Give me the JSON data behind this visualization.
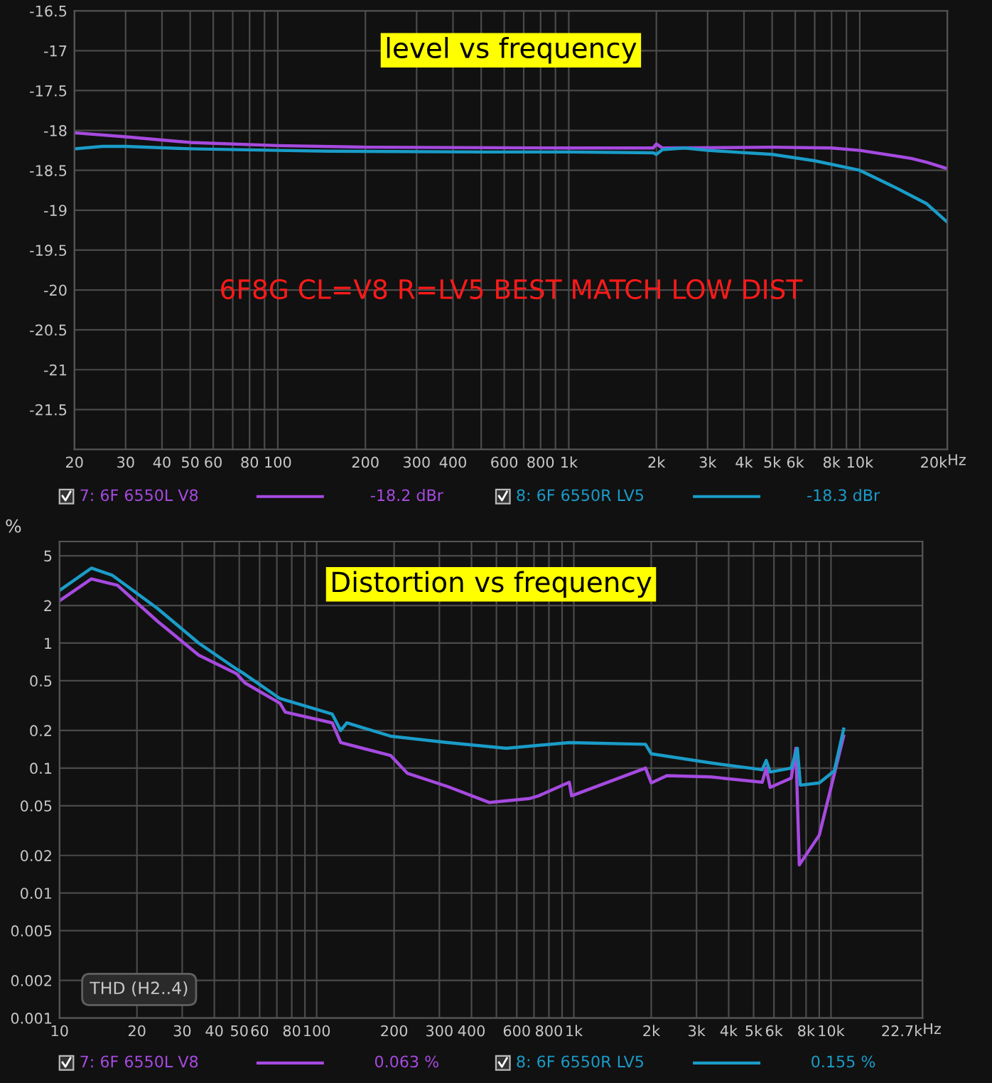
{
  "chart_data": [
    {
      "type": "line",
      "title": "level vs frequency",
      "log": "x",
      "grid": true,
      "legend": "bottom",
      "line_style": "solid",
      "marker": "none",
      "xlim": [
        20,
        20000
      ],
      "ylim": [
        -22,
        -16.5
      ],
      "xticks": [
        20,
        30,
        40,
        50,
        60,
        {
          "value": 70,
          "label": null
        },
        80,
        {
          "value": 90,
          "label": null
        },
        100,
        200,
        300,
        400,
        {
          "value": 500,
          "label": null
        },
        600,
        {
          "value": 700,
          "label": null
        },
        800,
        {
          "value": 900,
          "label": null
        },
        {
          "value": 1000,
          "label": "1k"
        },
        {
          "value": 2000,
          "label": "2k"
        },
        {
          "value": 3000,
          "label": "3k"
        },
        {
          "value": 4000,
          "label": "4k"
        },
        {
          "value": 5000,
          "label": "5k"
        },
        {
          "value": 6000,
          "label": "6k"
        },
        {
          "value": 7000,
          "label": null
        },
        {
          "value": 8000,
          "label": "8k"
        },
        {
          "value": 9000,
          "label": null
        },
        {
          "value": 10000,
          "label": "10k"
        },
        {
          "value": 20000,
          "label": "20k"
        }
      ],
      "xlabel": "Hz",
      "yticks": [
        -16.5,
        -17,
        -17.5,
        -18,
        -18.5,
        -19,
        -19.5,
        -20,
        -20.5,
        -21,
        -21.5
      ],
      "annotations": [
        "6F8G CL=V8 R=LV5 BEST MATCH LOW DIST",
        "-18.2 dBr",
        "-18.3 dBr"
      ],
      "series": [
        {
          "name": "7: 6F 6550L V8",
          "color": "#a64ae0",
          "x": [
            20,
            30,
            50,
            100,
            200,
            1000,
            1950,
            2000,
            2100,
            5000,
            8000,
            10000,
            15000,
            17000,
            20000
          ],
          "values": [
            -18.03,
            -18.08,
            -18.15,
            -18.19,
            -18.21,
            -18.22,
            -18.22,
            -18.17,
            -18.22,
            -18.21,
            -18.22,
            -18.25,
            -18.35,
            -18.4,
            -18.48
          ]
        },
        {
          "name": "8: 6F 6550R LV5",
          "color": "#1a9cc8",
          "x": [
            20,
            25,
            30,
            50,
            100,
            150,
            500,
            1000,
            1950,
            2000,
            2100,
            2500,
            3000,
            5000,
            7000,
            10000,
            13000,
            17000,
            20000
          ],
          "values": [
            -18.23,
            -18.2,
            -18.2,
            -18.23,
            -18.25,
            -18.26,
            -18.27,
            -18.27,
            -18.28,
            -18.3,
            -18.24,
            -18.22,
            -18.25,
            -18.3,
            -18.38,
            -18.5,
            -18.7,
            -18.92,
            -19.15
          ]
        }
      ]
    },
    {
      "type": "line",
      "title": "Distortion vs frequency",
      "ylabel": "%",
      "log": "xy",
      "grid": true,
      "legend": "bottom",
      "line_style": "solid",
      "marker": "none",
      "xlim": [
        10,
        22700
      ],
      "ylim": [
        0.001,
        6.5
      ],
      "xticks": [
        10,
        20,
        30,
        40,
        50,
        60,
        {
          "value": 70,
          "label": null
        },
        80,
        {
          "value": 90,
          "label": null
        },
        100,
        200,
        300,
        400,
        {
          "value": 500,
          "label": null
        },
        600,
        {
          "value": 700,
          "label": null
        },
        800,
        {
          "value": 900,
          "label": null
        },
        {
          "value": 1000,
          "label": "1k"
        },
        {
          "value": 2000,
          "label": "2k"
        },
        {
          "value": 3000,
          "label": "3k"
        },
        {
          "value": 4000,
          "label": "4k"
        },
        {
          "value": 5000,
          "label": "5k"
        },
        {
          "value": 6000,
          "label": "6k"
        },
        {
          "value": 7000,
          "label": null
        },
        {
          "value": 8000,
          "label": "8k"
        },
        {
          "value": 9000,
          "label": null
        },
        {
          "value": 10000,
          "label": "10k"
        },
        {
          "value": 22700,
          "label": "22.7k"
        }
      ],
      "xlabel": "Hz",
      "yticks": [
        5,
        2,
        1,
        0.5,
        0.2,
        0.1,
        0.05,
        0.02,
        0.01,
        0.005,
        0.002,
        0.001
      ],
      "annotations": [
        "THD (H2..4)",
        "0.063 %",
        "0.155 %"
      ],
      "series": [
        {
          "name": "7: 6F 6550L V8",
          "color": "#a64ae0",
          "x": [
            10,
            13.3,
            16.8,
            24,
            34.8,
            48.8,
            52.6,
            72,
            75.5,
            115,
            124,
            194,
            225,
            324,
            470,
            670,
            730,
            960,
            980,
            1900,
            2000,
            2300,
            3400,
            5400,
            5600,
            5800,
            7000,
            7300,
            7530,
            9000,
            11200
          ],
          "values": [
            2.18,
            3.26,
            2.9,
            1.5,
            0.8,
            0.57,
            0.48,
            0.33,
            0.28,
            0.23,
            0.16,
            0.126,
            0.091,
            0.071,
            0.053,
            0.057,
            0.06,
            0.077,
            0.06,
            0.1,
            0.076,
            0.087,
            0.085,
            0.077,
            0.1,
            0.07,
            0.083,
            0.144,
            0.0168,
            0.029,
            0.18
          ]
        },
        {
          "name": "8: 6F 6550R LV5",
          "color": "#1a9cc8",
          "x": [
            10,
            13.3,
            16,
            24,
            34.8,
            48.8,
            51.5,
            72,
            115,
            124,
            131,
            194,
            324,
            546,
            960,
            1900,
            2000,
            3400,
            5400,
            5600,
            5800,
            7000,
            7400,
            7600,
            9000,
            10300,
            11200
          ],
          "values": [
            2.64,
            3.98,
            3.5,
            1.9,
            1.0,
            0.62,
            0.58,
            0.36,
            0.27,
            0.2,
            0.23,
            0.18,
            0.16,
            0.144,
            0.16,
            0.155,
            0.13,
            0.11,
            0.097,
            0.115,
            0.093,
            0.1,
            0.144,
            0.073,
            0.076,
            0.095,
            0.205
          ]
        }
      ]
    }
  ]
}
